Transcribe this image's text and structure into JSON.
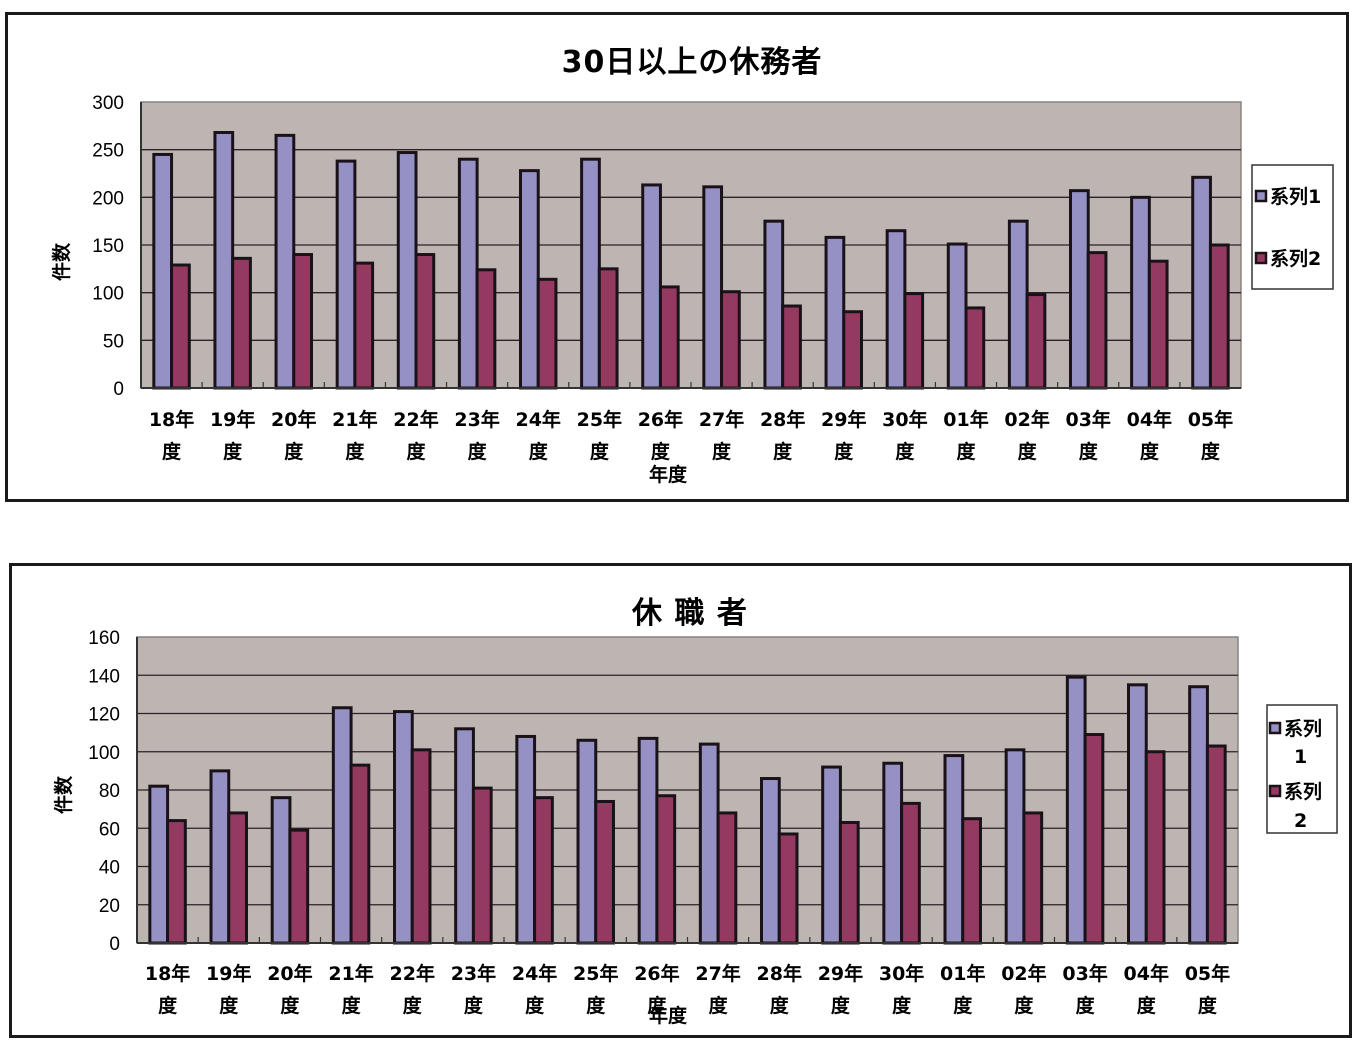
{
  "colors": {
    "series1": "#9591c4",
    "series2": "#943a61",
    "plot_bg": "#bdb5b1",
    "gridline": "#2a2226",
    "bar_outline": "#1a1218"
  },
  "chart_data": [
    {
      "type": "bar",
      "title": "30日以上の休務者",
      "xlabel": "年度",
      "ylabel": "件数",
      "ylim": [
        0,
        300
      ],
      "yticks": [
        0,
        50,
        100,
        150,
        200,
        250,
        300
      ],
      "grid": true,
      "legend_position": "right",
      "categories": [
        "18年度",
        "19年度",
        "20年度",
        "21年度",
        "22年度",
        "23年度",
        "24年度",
        "25年度",
        "26年度",
        "27年度",
        "28年度",
        "29年度",
        "30年度",
        "01年度",
        "02年度",
        "03年度",
        "04年度",
        "05年度"
      ],
      "category_lines": [
        [
          "18年",
          "度"
        ],
        [
          "19年",
          "度"
        ],
        [
          "20年",
          "度"
        ],
        [
          "21年",
          "度"
        ],
        [
          "22年",
          "度"
        ],
        [
          "23年",
          "度"
        ],
        [
          "24年",
          "度"
        ],
        [
          "25年",
          "度"
        ],
        [
          "26年",
          "度"
        ],
        [
          "27年",
          "度"
        ],
        [
          "28年",
          "度"
        ],
        [
          "29年",
          "度"
        ],
        [
          "30年",
          "度"
        ],
        [
          "01年",
          "度"
        ],
        [
          "02年",
          "度"
        ],
        [
          "03年",
          "度"
        ],
        [
          "04年",
          "度"
        ],
        [
          "05年",
          "度"
        ]
      ],
      "series": [
        {
          "name": "系列1",
          "legend_lines": [
            "系列1"
          ],
          "values": [
            245,
            268,
            265,
            238,
            247,
            240,
            228,
            240,
            213,
            211,
            175,
            158,
            165,
            151,
            175,
            207,
            200,
            221
          ]
        },
        {
          "name": "系列2",
          "legend_lines": [
            "系列2"
          ],
          "values": [
            129,
            136,
            140,
            131,
            140,
            124,
            114,
            125,
            106,
            101,
            86,
            80,
            99,
            84,
            98,
            142,
            133,
            150
          ]
        }
      ]
    },
    {
      "type": "bar",
      "title": "休 職 者",
      "xlabel": "年度",
      "ylabel": "件数",
      "ylim": [
        0,
        160
      ],
      "yticks": [
        0,
        20,
        40,
        60,
        80,
        100,
        120,
        140,
        160
      ],
      "grid": true,
      "legend_position": "right",
      "categories": [
        "18年度",
        "19年度",
        "20年度",
        "21年度",
        "22年度",
        "23年度",
        "24年度",
        "25年度",
        "26年度",
        "27年度",
        "28年度",
        "29年度",
        "30年度",
        "01年度",
        "02年度",
        "03年度",
        "04年度",
        "05年度"
      ],
      "category_lines": [
        [
          "18年",
          "度"
        ],
        [
          "19年",
          "度"
        ],
        [
          "20年",
          "度"
        ],
        [
          "21年",
          "度"
        ],
        [
          "22年",
          "度"
        ],
        [
          "23年",
          "度"
        ],
        [
          "24年",
          "度"
        ],
        [
          "25年",
          "度"
        ],
        [
          "26年",
          "度"
        ],
        [
          "27年",
          "度"
        ],
        [
          "28年",
          "度"
        ],
        [
          "29年",
          "度"
        ],
        [
          "30年",
          "度"
        ],
        [
          "01年",
          "度"
        ],
        [
          "02年",
          "度"
        ],
        [
          "03年",
          "度"
        ],
        [
          "04年",
          "度"
        ],
        [
          "05年",
          "度"
        ]
      ],
      "series": [
        {
          "name": "系列1",
          "legend_lines": [
            "系列",
            "1"
          ],
          "values": [
            82,
            90,
            76,
            123,
            121,
            112,
            108,
            106,
            107,
            104,
            86,
            92,
            94,
            98,
            101,
            139,
            135,
            134
          ]
        },
        {
          "name": "系列2",
          "legend_lines": [
            "系列",
            "2"
          ],
          "values": [
            64,
            68,
            59,
            93,
            101,
            81,
            76,
            74,
            77,
            68,
            57,
            63,
            73,
            65,
            68,
            109,
            100,
            103
          ]
        }
      ]
    }
  ]
}
